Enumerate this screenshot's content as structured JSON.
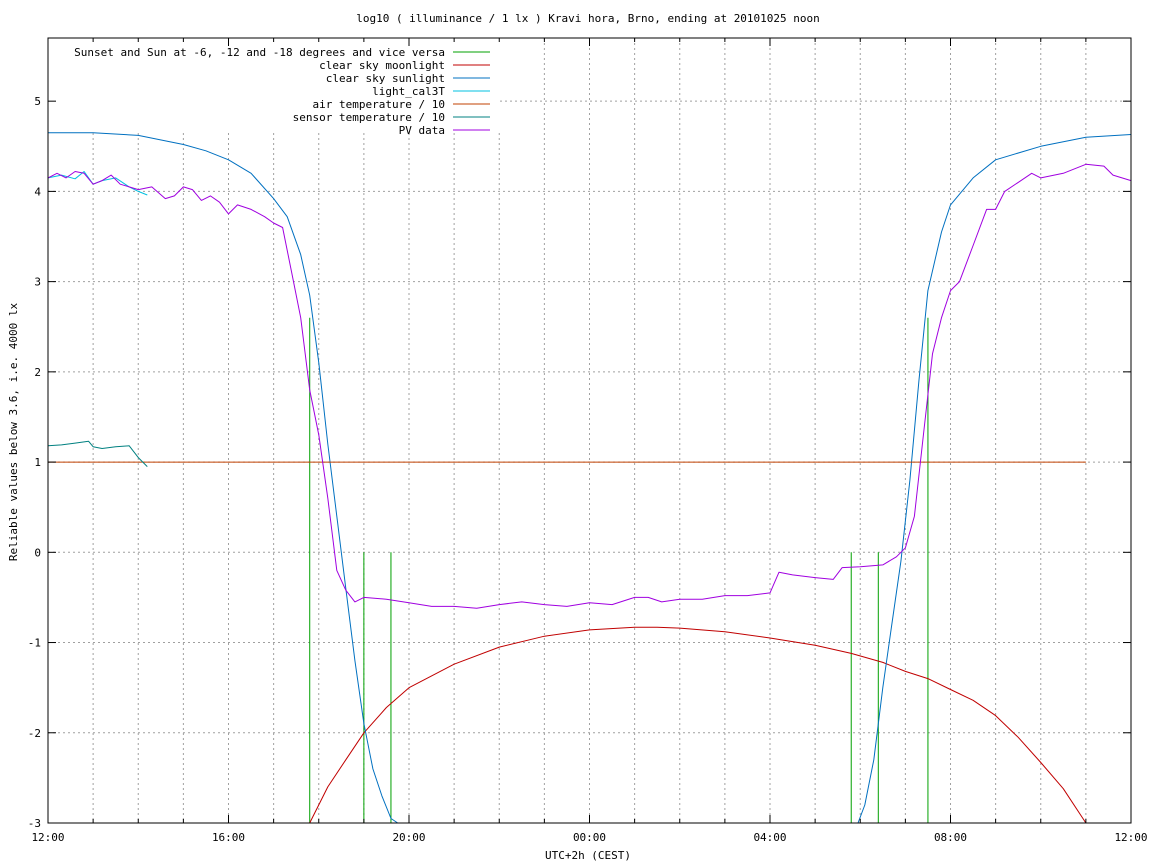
{
  "chart_data": {
    "type": "line",
    "title": "log10 ( illuminance / 1 lx ) Kravi hora, Brno, ending at 20101025 noon",
    "xlabel": "UTC+2h (CEST)",
    "ylabel": "Reliable values below 3.6, i.e. 4000 lx",
    "xlim": [
      12,
      36
    ],
    "ylim": [
      -3,
      5.7
    ],
    "x_ticks": [
      {
        "value": 12,
        "label": "12:00"
      },
      {
        "value": 16,
        "label": "16:00"
      },
      {
        "value": 20,
        "label": "20:00"
      },
      {
        "value": 24,
        "label": "00:00"
      },
      {
        "value": 28,
        "label": "04:00"
      },
      {
        "value": 32,
        "label": "08:00"
      },
      {
        "value": 36,
        "label": "12:00"
      }
    ],
    "y_ticks": [
      {
        "value": -3,
        "label": "-3"
      },
      {
        "value": -2,
        "label": "-2"
      },
      {
        "value": -1,
        "label": "-1"
      },
      {
        "value": 0,
        "label": "0"
      },
      {
        "value": 1,
        "label": "1"
      },
      {
        "value": 2,
        "label": "2"
      },
      {
        "value": 3,
        "label": "3"
      },
      {
        "value": 4,
        "label": "4"
      },
      {
        "value": 5,
        "label": "5"
      }
    ],
    "grid": true,
    "legend_position": "top-left",
    "series": [
      {
        "name": "Sunset and Sun at -6, -12 and -18 degrees and vice versa",
        "color": "#00a000",
        "kind": "impulses",
        "x": [
          17.8,
          19.0,
          19.6,
          29.8,
          30.4,
          31.5
        ],
        "y": [
          2.6,
          0.0,
          0.0,
          0.0,
          0.0,
          2.6
        ]
      },
      {
        "name": "clear sky moonlight",
        "color": "#c00000",
        "x": [
          17.8,
          18.2,
          18.6,
          19.0,
          19.5,
          20.0,
          21.0,
          22.0,
          23.0,
          24.0,
          25.0,
          25.5,
          26.0,
          27.0,
          28.0,
          29.0,
          29.8,
          30.5,
          31.0,
          31.5,
          32.0,
          32.5,
          33.0,
          33.5,
          34.0,
          34.5,
          35.0
        ],
        "y": [
          -3.0,
          -2.6,
          -2.3,
          -2.0,
          -1.72,
          -1.5,
          -1.24,
          -1.05,
          -0.93,
          -0.86,
          -0.83,
          -0.83,
          -0.84,
          -0.88,
          -0.95,
          -1.03,
          -1.12,
          -1.22,
          -1.32,
          -1.4,
          -1.52,
          -1.64,
          -1.81,
          -2.05,
          -2.33,
          -2.62,
          -3.0
        ]
      },
      {
        "name": "clear sky sunlight",
        "color": "#0070c0",
        "x": [
          12.0,
          13.0,
          14.0,
          15.0,
          15.5,
          16.0,
          16.5,
          17.0,
          17.3,
          17.6,
          17.8,
          18.0,
          18.2,
          18.4,
          18.6,
          18.8,
          19.0,
          19.2,
          19.4,
          19.6,
          19.75,
          29.95,
          30.1,
          30.3,
          30.5,
          30.7,
          30.9,
          31.1,
          31.3,
          31.5,
          31.8,
          32.0,
          32.5,
          33.0,
          34.0,
          35.0,
          36.0
        ],
        "y": [
          4.65,
          4.65,
          4.62,
          4.52,
          4.45,
          4.35,
          4.2,
          3.92,
          3.72,
          3.3,
          2.85,
          2.1,
          1.2,
          0.4,
          -0.4,
          -1.2,
          -1.9,
          -2.4,
          -2.7,
          -2.95,
          -3.0,
          -3.0,
          -2.8,
          -2.3,
          -1.5,
          -0.8,
          -0.1,
          0.8,
          1.9,
          2.9,
          3.55,
          3.85,
          4.15,
          4.35,
          4.5,
          4.6,
          4.63
        ]
      },
      {
        "name": "light_cal3T",
        "color": "#00c0e0",
        "x": [
          12.0,
          12.3,
          12.6,
          12.8,
          13.0,
          13.2,
          13.5,
          13.8,
          14.0,
          14.2
        ],
        "y": [
          4.15,
          4.18,
          4.14,
          4.22,
          4.08,
          4.12,
          4.15,
          4.05,
          4.0,
          3.96
        ]
      },
      {
        "name": "air temperature / 10",
        "color": "#c04000",
        "x": [
          12.0,
          35.0
        ],
        "y": [
          1.0,
          1.0
        ]
      },
      {
        "name": "sensor temperature / 10",
        "color": "#008080",
        "x": [
          12.0,
          12.3,
          12.6,
          12.9,
          13.0,
          13.2,
          13.5,
          13.8,
          14.0,
          14.2
        ],
        "y": [
          1.18,
          1.19,
          1.21,
          1.23,
          1.17,
          1.15,
          1.17,
          1.18,
          1.05,
          0.95
        ]
      },
      {
        "name": "PV data",
        "color": "#a000e0",
        "x": [
          12.0,
          12.2,
          12.4,
          12.6,
          12.8,
          13.0,
          13.2,
          13.4,
          13.6,
          13.8,
          14.0,
          14.3,
          14.6,
          14.8,
          15.0,
          15.2,
          15.4,
          15.6,
          15.8,
          16.0,
          16.2,
          16.5,
          16.8,
          17.0,
          17.2,
          17.4,
          17.6,
          17.8,
          18.0,
          18.2,
          18.4,
          18.6,
          18.8,
          19.0,
          19.5,
          20.0,
          20.5,
          21.0,
          21.5,
          22.0,
          22.5,
          23.0,
          23.5,
          24.0,
          24.5,
          25.0,
          25.3,
          25.6,
          26.0,
          26.5,
          27.0,
          27.5,
          28.0,
          28.2,
          28.5,
          29.0,
          29.4,
          29.6,
          30.0,
          30.5,
          30.8,
          31.0,
          31.2,
          31.4,
          31.6,
          31.8,
          32.0,
          32.2,
          32.5,
          32.8,
          33.0,
          33.2,
          33.5,
          33.8,
          34.0,
          34.5,
          35.0,
          35.4,
          35.6,
          36.0
        ],
        "y": [
          4.15,
          4.2,
          4.15,
          4.22,
          4.2,
          4.08,
          4.12,
          4.18,
          4.08,
          4.05,
          4.02,
          4.05,
          3.92,
          3.95,
          4.05,
          4.02,
          3.9,
          3.95,
          3.88,
          3.75,
          3.85,
          3.8,
          3.72,
          3.65,
          3.6,
          3.1,
          2.6,
          1.8,
          1.3,
          0.6,
          -0.2,
          -0.42,
          -0.55,
          -0.5,
          -0.52,
          -0.56,
          -0.6,
          -0.6,
          -0.62,
          -0.58,
          -0.55,
          -0.58,
          -0.6,
          -0.56,
          -0.58,
          -0.5,
          -0.5,
          -0.55,
          -0.52,
          -0.52,
          -0.48,
          -0.48,
          -0.45,
          -0.22,
          -0.25,
          -0.28,
          -0.3,
          -0.17,
          -0.16,
          -0.14,
          -0.05,
          0.05,
          0.4,
          1.3,
          2.2,
          2.6,
          2.9,
          3.0,
          3.4,
          3.8,
          3.8,
          4.0,
          4.1,
          4.2,
          4.15,
          4.2,
          4.3,
          4.28,
          4.18,
          4.12
        ]
      }
    ]
  }
}
